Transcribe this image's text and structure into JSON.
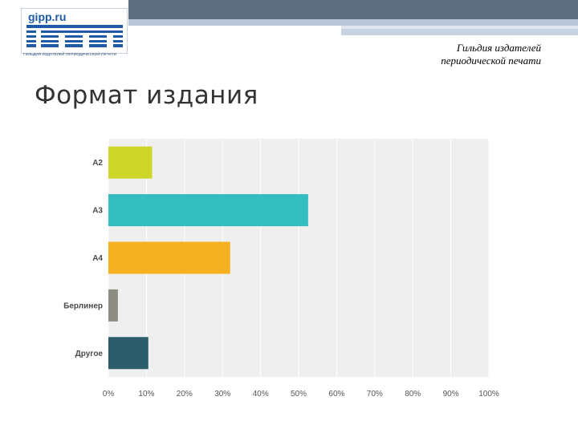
{
  "header": {
    "logo_site": "gipp.ru",
    "logo_caption": "ГИЛЬДИЯ ИЗДАТЕЛЕЙ ПЕРИОДИЧЕСКОЙ ПЕЧАТИ",
    "guild_line1": "Гильдия издателей",
    "guild_line2": "периодической печати"
  },
  "colors": {
    "band_dark": "#5f6f82",
    "band_light": "#b9c6d9",
    "logo_blue": "#1f5aa6",
    "chart_bg": "#efefef"
  },
  "page": {
    "title": "Формат издания"
  },
  "chart_data": {
    "type": "bar",
    "orientation": "horizontal",
    "categories": [
      "A2",
      "A3",
      "A4",
      "Берлинер",
      "Другое"
    ],
    "values": [
      11.5,
      52.5,
      32,
      2.5,
      10.5
    ],
    "colors": [
      "#cfd62a",
      "#33bdbf",
      "#f6b123",
      "#8d8d82",
      "#2c5d6c"
    ],
    "xlim": [
      0,
      100
    ],
    "xticks": [
      "0%",
      "10%",
      "20%",
      "30%",
      "40%",
      "50%",
      "60%",
      "70%",
      "80%",
      "90%",
      "100%"
    ],
    "grid": true,
    "legend": "none"
  }
}
